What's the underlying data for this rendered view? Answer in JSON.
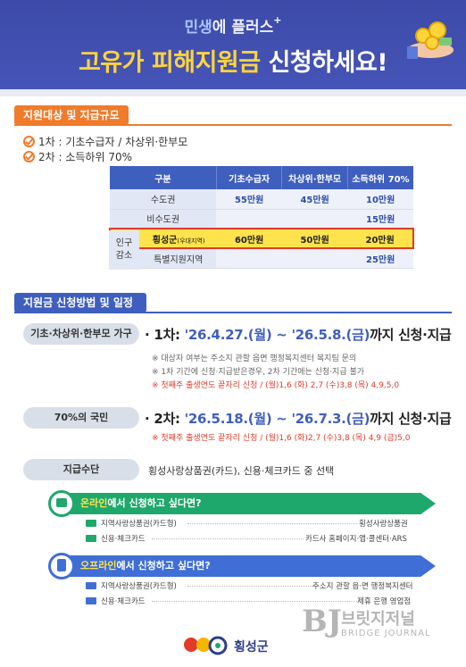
{
  "header": {
    "sub_accent": "민생",
    "sub_rest": "에 플러스",
    "sub_star": "+",
    "title_hl": "고유가 피해지원금",
    "title_rest": " 신청하세요!"
  },
  "section1": {
    "tag": "지원대상 및 지급규모",
    "line1": "1차 : 기초수급자  /  차상위·한부모",
    "line2": "2차 : 소득하위 70%"
  },
  "table": {
    "headers": [
      "구분",
      "기초수급자",
      "차상위·한부모",
      "소득하위 70%"
    ],
    "rows": [
      {
        "label": "수도권",
        "sub": "",
        "c1": "55만원",
        "c2": "45만원",
        "c3": "10만원"
      },
      {
        "label": "비수도권",
        "sub": "",
        "c1": "",
        "c2": "",
        "c3": "15만원"
      },
      {
        "label": "횡성군",
        "sub": "(우대지역)",
        "c1": "60만원",
        "c2": "50만원",
        "c3": "20만원"
      },
      {
        "label": "특별지원지역",
        "sub": "",
        "c1": "",
        "c2": "",
        "c3": "25만원"
      }
    ],
    "side_label_1": "인구",
    "side_label_2": "감소"
  },
  "section2": {
    "tag": "지원금 신청방법 및 일정",
    "pill1": "기초·차상위·한부모 가구",
    "line1_prefix": "· 1차: ",
    "line1_dates": "'26.4.27.(월) ~ '26.5.8.(금)",
    "line1_suffix": "까지 신청·지급",
    "note1": "※ 대상자 여부는 주소지 관할 읍면 행정복지센터 복지팀 문의",
    "note2": "※ 1차 기간에 신청·지급받은경우, 2차 기간에는 신청·지급 불가",
    "note3": "※ 첫째주 출생연도 끝자리 신청 / (월)1,6 (화) 2,7 (수)3,8 (목) 4,9,5,0",
    "pill2": "70%의 국민",
    "line2_prefix": "· 2차: ",
    "line2_dates": "'26.5.18.(월) ~ '26.7.3.(금)",
    "line2_suffix": "까지 신청·지급",
    "note4": "※ 첫째주 출생연도 끝자리 신청 / (월)1,6 (화)2,7 (수)3,8 (목) 4,9 (금)5,0",
    "pill3": "지급수단",
    "pay_text": "횡성사랑상품권(카드), 신용·체크카드 중 선택"
  },
  "online": {
    "title_hl": "온라인",
    "title_rest": "에서 신청하고 싶다면?",
    "r1_left": "지역사랑상품권(카드형)",
    "r1_right": "횡성사랑상품권",
    "r2_left": "신용·체크카드",
    "r2_right": "카드사 홈페이지·앱·콜센터·ARS"
  },
  "offline": {
    "title_hl": "오프라인",
    "title_rest": "에서 신청하고 싶다면?",
    "r1_left": "지역사랑상품권(카드형)",
    "r1_right": "주소지 관할 읍·면 행정복지센터",
    "r2_left": "신용·체크카드",
    "r2_right": "제휴 은행 영업점"
  },
  "footer": {
    "logo_text": "횡성군"
  },
  "watermark": {
    "k": "브릿지저널",
    "e": "BRIDGE JOURNAL"
  }
}
